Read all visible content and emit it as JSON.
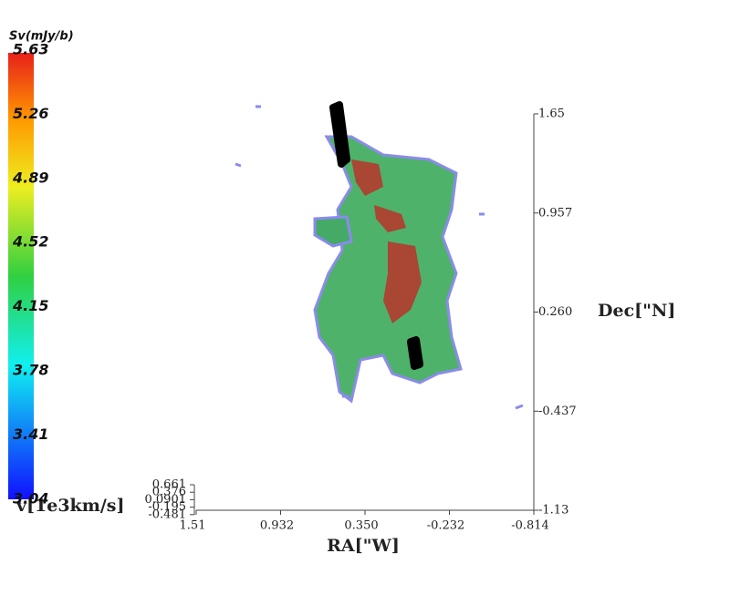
{
  "colorbar": {
    "title": "Sv(mJy/b)",
    "ticks": [
      "5.63",
      "5.26",
      "4.89",
      "4.52",
      "4.15",
      "3.78",
      "3.41",
      "3.04"
    ]
  },
  "dec_axis": {
    "label": "Dec[\"N]",
    "ticks": [
      "1.65",
      "0.957",
      "0.260",
      "-0.437",
      "-1.13"
    ]
  },
  "ra_axis": {
    "label": "RA[\"W]",
    "ticks": [
      "1.51",
      "0.932",
      "0.350",
      "-0.232",
      "-0.814"
    ]
  },
  "v_axis": {
    "label": "v[1e3km/s]",
    "ticks": [
      "0.661",
      "0.376",
      "0.0901",
      "-0.195",
      "-0.481"
    ]
  }
}
